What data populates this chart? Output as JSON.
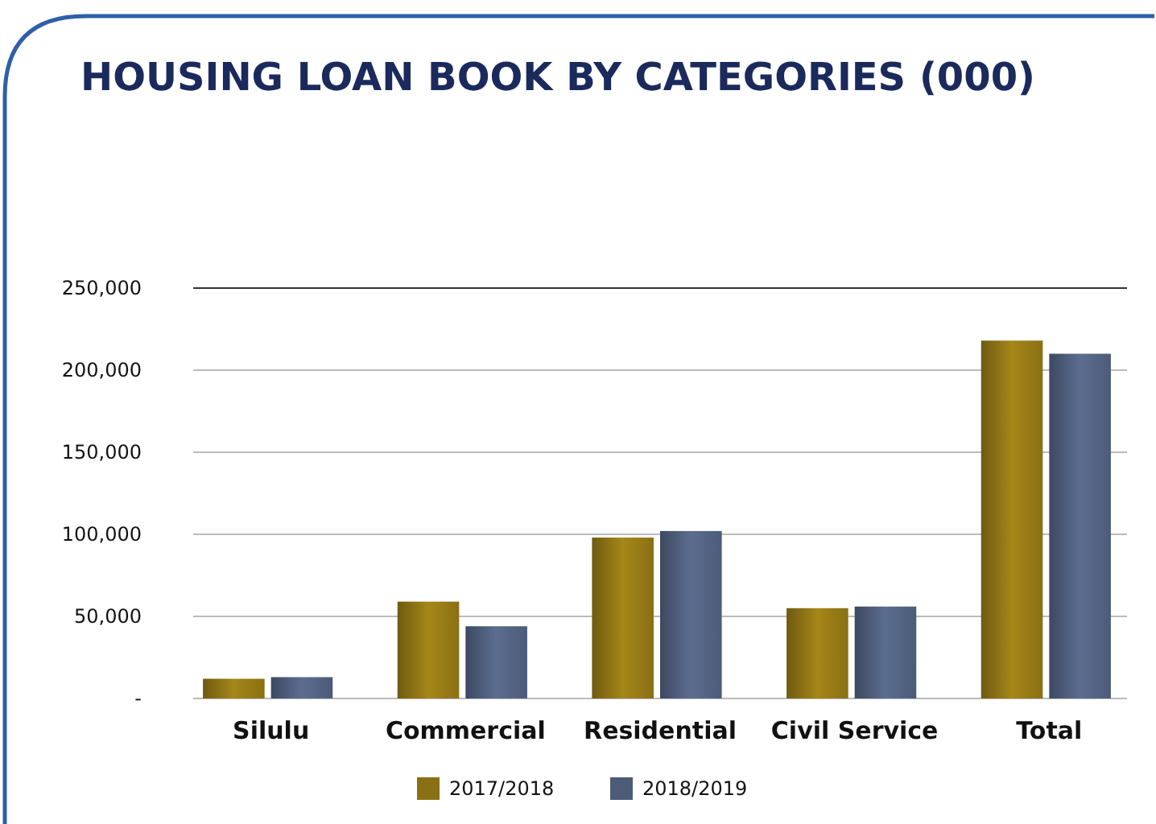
{
  "chart_data": {
    "type": "bar",
    "title": "HOUSING LOAN BOOK BY CATEGORIES (000)",
    "categories": [
      "Silulu",
      "Commercial",
      "Residential",
      "Civil Service",
      "Total"
    ],
    "series": [
      {
        "name": "2017/2018",
        "color": "#8a7014",
        "values": [
          12000,
          59000,
          98000,
          55000,
          218000
        ]
      },
      {
        "name": "2018/2019",
        "color": "#4c5b78",
        "values": [
          13000,
          44000,
          102000,
          56000,
          210000
        ]
      }
    ],
    "ylim": [
      0,
      250000
    ],
    "yticks": [
      {
        "value": 0,
        "label": "-"
      },
      {
        "value": 50000,
        "label": "50,000"
      },
      {
        "value": 100000,
        "label": "100,000"
      },
      {
        "value": 150000,
        "label": "150,000"
      },
      {
        "value": 200000,
        "label": "200,000"
      },
      {
        "value": 250000,
        "label": "250,000"
      }
    ],
    "grid": "y",
    "legend": "bottom"
  }
}
